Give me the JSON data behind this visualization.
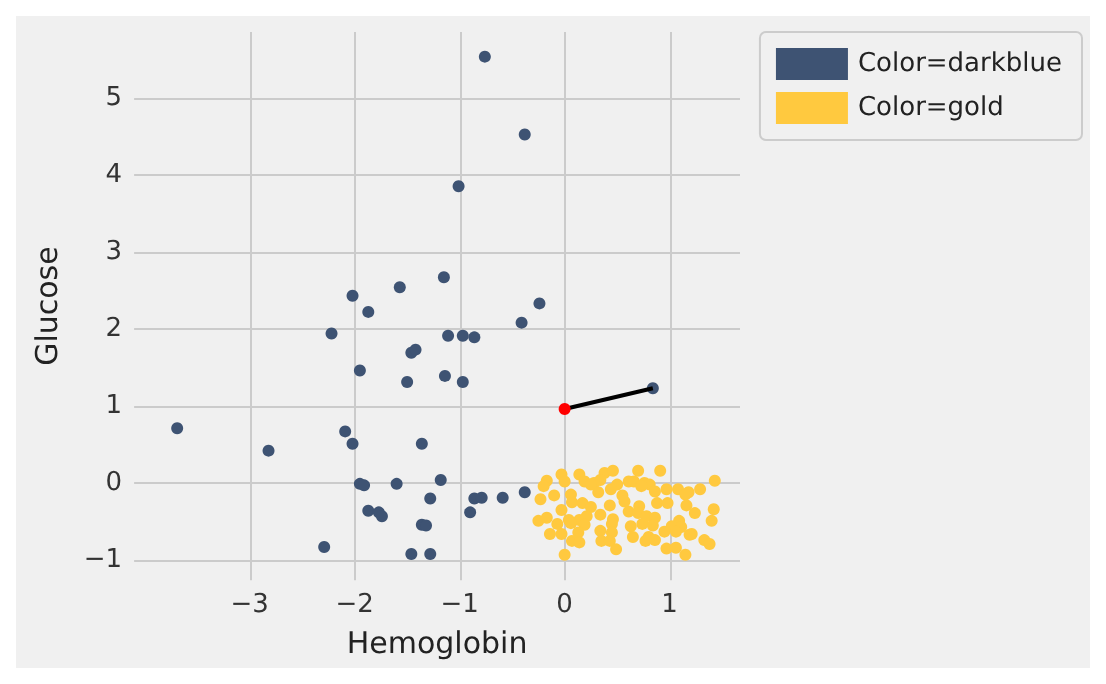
{
  "chart_data": {
    "type": "scatter",
    "xlabel": "Hemoglobin",
    "ylabel": "Glucose",
    "xlim": [
      -4.1,
      1.67
    ],
    "ylim": [
      -1.26,
      5.85
    ],
    "xticks": [
      -3,
      -2,
      -1,
      0,
      1
    ],
    "yticks": [
      -1,
      0,
      1,
      2,
      3,
      4,
      5
    ],
    "grid": true,
    "legend": "top right",
    "marker": "circle",
    "series": [
      {
        "name": "Color=darkblue",
        "color": "#3e5373",
        "x": [
          -0.76,
          -0.38,
          -1.01,
          -2.02,
          -1.57,
          -1.15,
          -1.87,
          -2.22,
          -1.11,
          -0.97,
          -0.86,
          -1.46,
          -1.42,
          -1.95,
          -1.5,
          -1.14,
          -0.97,
          -3.69,
          -2.82,
          -2.09,
          -2.02,
          -1.36,
          -1.95,
          -1.91,
          -1.6,
          -1.18,
          -1.28,
          -1.87,
          -1.77,
          -1.74,
          -1.36,
          -1.32,
          -2.29,
          -1.46,
          -1.28,
          -0.24,
          -0.41,
          -0.86,
          -0.79,
          -0.9,
          -0.59,
          -0.38,
          0.84
        ],
        "values": [
          5.53,
          4.52,
          3.85,
          2.43,
          2.54,
          2.67,
          2.22,
          1.94,
          1.91,
          1.91,
          1.89,
          1.69,
          1.73,
          1.46,
          1.31,
          1.39,
          1.31,
          0.71,
          0.42,
          0.67,
          0.51,
          0.51,
          -0.01,
          -0.03,
          -0.01,
          0.04,
          -0.2,
          -0.36,
          -0.38,
          -0.43,
          -0.54,
          -0.55,
          -0.83,
          -0.92,
          -0.92,
          2.33,
          2.08,
          -0.2,
          -0.19,
          -0.38,
          -0.19,
          -0.12,
          1.23
        ]
      },
      {
        "name": "Color=gold",
        "color": "#ffc93f",
        "x": [
          -0.17,
          -0.03,
          0.14,
          0.38,
          0.46,
          0.7,
          0.91,
          1.43,
          -0.2,
          0,
          0.19,
          0.28,
          0.34,
          0.5,
          0.61,
          0.66,
          0.76,
          0.81,
          1.08,
          1.18,
          1.29,
          -0.23,
          -0.1,
          0.06,
          0.32,
          0.44,
          0.55,
          0.73,
          0.86,
          0.97,
          1.15,
          0.07,
          0.17,
          0.25,
          0.43,
          0.57,
          0.71,
          0.88,
          0.98,
          1.16,
          1.42,
          -0.25,
          -0.17,
          -0.03,
          0.04,
          0.14,
          0.21,
          0.34,
          0.46,
          0.61,
          0.7,
          0.78,
          0.86,
          1.09,
          1.24,
          1.4,
          -0.07,
          0.06,
          0.19,
          0.45,
          0.63,
          0.74,
          0.84,
          1.02,
          1.11,
          1.21,
          -0.14,
          -0.03,
          0.13,
          0.34,
          0.45,
          0.65,
          0.8,
          0.95,
          1.06,
          1.19,
          1.33,
          0.07,
          0.14,
          0.35,
          0.43,
          0.49,
          0.77,
          0.86,
          0.97,
          1.06,
          1.15,
          0,
          1.38,
          0.25
        ],
        "values": [
          0.03,
          0.11,
          0.11,
          0.13,
          0.16,
          0.16,
          0.16,
          0.03,
          -0.04,
          0.02,
          0.02,
          0,
          0.04,
          -0.02,
          0.02,
          0.02,
          0,
          -0.02,
          -0.08,
          -0.12,
          -0.08,
          -0.21,
          -0.16,
          -0.15,
          -0.12,
          -0.08,
          -0.16,
          -0.04,
          -0.11,
          -0.08,
          -0.15,
          -0.25,
          -0.26,
          -0.31,
          -0.29,
          -0.24,
          -0.3,
          -0.26,
          -0.26,
          -0.29,
          -0.34,
          -0.49,
          -0.45,
          -0.35,
          -0.48,
          -0.48,
          -0.43,
          -0.41,
          -0.47,
          -0.37,
          -0.39,
          -0.43,
          -0.45,
          -0.49,
          -0.39,
          -0.49,
          -0.53,
          -0.52,
          -0.54,
          -0.53,
          -0.56,
          -0.53,
          -0.55,
          -0.56,
          -0.57,
          -0.66,
          -0.66,
          -0.66,
          -0.64,
          -0.62,
          -0.64,
          -0.7,
          -0.7,
          -0.63,
          -0.63,
          -0.67,
          -0.74,
          -0.75,
          -0.77,
          -0.75,
          -0.75,
          -0.86,
          -0.75,
          -0.74,
          -0.85,
          -0.84,
          -0.93,
          -0.93,
          -0.79,
          -0.02
        ]
      },
      {
        "type": "line",
        "marker": "none",
        "color": "#000000",
        "x": [
          0,
          0.84
        ],
        "values": [
          0.96,
          1.23
        ]
      },
      {
        "color": "#ff0000",
        "x": [
          0
        ],
        "values": [
          0.96
        ]
      }
    ]
  }
}
